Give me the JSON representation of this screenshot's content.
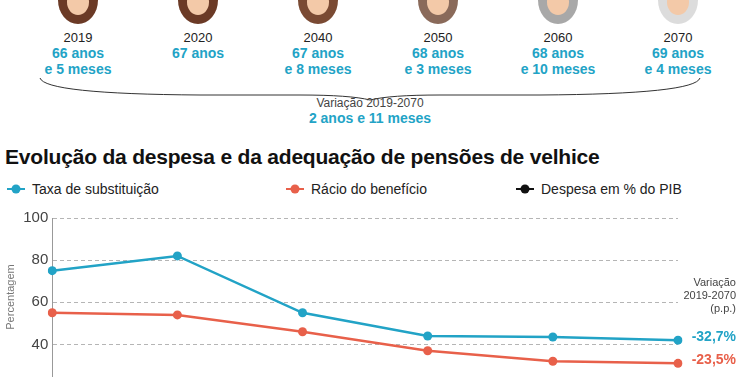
{
  "header": {
    "items": [
      {
        "year": "2019",
        "age": [
          "66 anos",
          "e 5 meses"
        ]
      },
      {
        "year": "2020",
        "age": [
          "67 anos"
        ]
      },
      {
        "year": "2040",
        "age": [
          "67 anos",
          "e 8 meses"
        ]
      },
      {
        "year": "2050",
        "age": [
          "68 anos",
          "e 3 meses"
        ]
      },
      {
        "year": "2060",
        "age": [
          "68 anos",
          "e 10 meses"
        ]
      },
      {
        "year": "2070",
        "age": [
          "69 anos",
          "e 4 meses"
        ]
      }
    ],
    "age_color": "#22a3c6",
    "variation_label": "Variação 2019-2070",
    "variation_value": "2 anos e 11 meses"
  },
  "chart_data": {
    "type": "line",
    "title": "Evolução da despesa e da adequação de pensões de velhice",
    "y_label": "Percentagem",
    "categories": [
      "2019",
      "2020",
      "2040",
      "2050",
      "2060",
      "2070"
    ],
    "series": [
      {
        "name": "Taxa de substituição",
        "color": "#22a3c6",
        "marker": "circle",
        "values": [
          75,
          82,
          55,
          44,
          43.5,
          42
        ]
      },
      {
        "name": "Rácio do benefício",
        "color": "#e8604a",
        "marker": "circle",
        "values": [
          55,
          54,
          46,
          37,
          32,
          31
        ]
      },
      {
        "name": "Despesa em % do PIB",
        "color": "#111111",
        "marker": "circle",
        "values": [
          null,
          null,
          null,
          null,
          null,
          null
        ]
      }
    ],
    "ylim": [
      25,
      100
    ],
    "yticks": [
      40,
      60,
      80,
      100
    ],
    "grid": true,
    "legend": "top",
    "tick_labels": "y",
    "annotations": {
      "heading": [
        "Variação",
        "2019-2070",
        "(p.p.)"
      ],
      "notes": [
        {
          "text": "-32,7%",
          "color": "#22a3c6"
        },
        {
          "text": "-23,5%",
          "color": "#e8604a"
        }
      ]
    }
  }
}
